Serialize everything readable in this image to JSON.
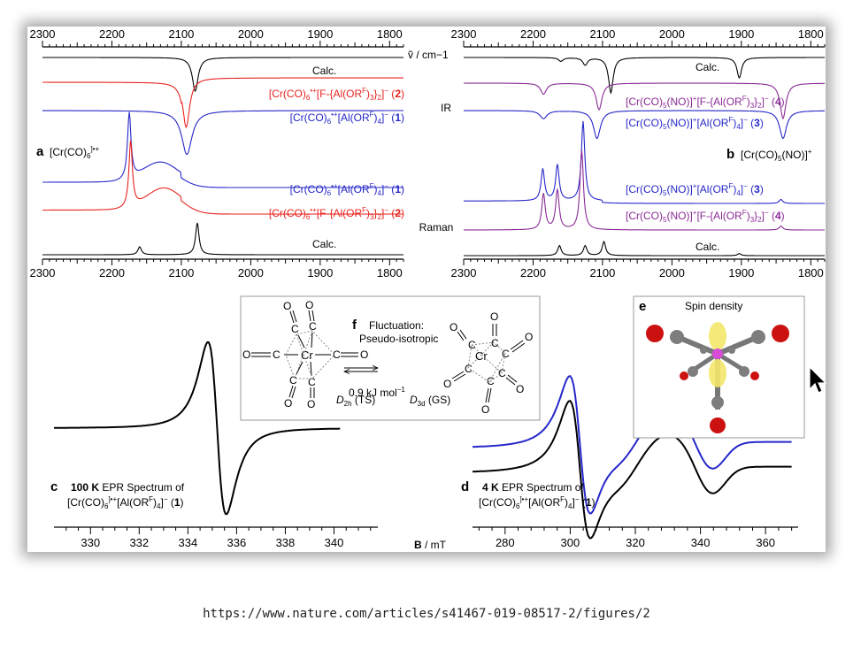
{
  "caption": {
    "url": "https://www.nature.com/articles/s41467-019-08517-2/figures/2"
  },
  "colors": {
    "black": "#000000",
    "red": "#e8231f",
    "blue": "#2527c9",
    "purple": "#8a2a96"
  },
  "panels": {
    "a": {
      "letter": "a",
      "species": "[Cr(CO)6]•+",
      "method_ir": "IR",
      "method_raman": "Raman",
      "traces": [
        {
          "id": "ir-calc",
          "label": "Calc.",
          "color": "#000000"
        },
        {
          "id": "ir-2",
          "label": "[Cr(CO)6]•+[F-{Al(ORF)3}2]− (2)",
          "color": "#e8231f"
        },
        {
          "id": "ir-1",
          "label": "[Cr(CO)6]•+[Al(ORF)4]− (1)",
          "color": "#2527c9"
        },
        {
          "id": "ra-1",
          "label": "[Cr(CO)6]•+[Al(ORF)4]− (1)",
          "color": "#2527c9"
        },
        {
          "id": "ra-2",
          "label": "[Cr(CO)6]•+[F-{Al(ORF)3}2]− (2)",
          "color": "#e8231f"
        },
        {
          "id": "ra-calc",
          "label": "Calc.",
          "color": "#000000"
        }
      ]
    },
    "b": {
      "letter": "b",
      "species": "[Cr(CO)5(NO)]+",
      "traces": [
        {
          "id": "ir-calc",
          "label": "Calc.",
          "color": "#000000"
        },
        {
          "id": "ir-4",
          "label": "[Cr(CO)5(NO)]+[F-{Al(ORF)3}2]− (4)",
          "color": "#8a2a96"
        },
        {
          "id": "ir-3",
          "label": "[Cr(CO)5(NO)]+[Al(ORF)4]− (3)",
          "color": "#2527c9"
        },
        {
          "id": "ra-3",
          "label": "[Cr(CO)5(NO)]+[Al(ORF)4]− (3)",
          "color": "#2527c9"
        },
        {
          "id": "ra-4",
          "label": "[Cr(CO)5(NO)]+[F-{Al(ORF)3}2]− (4)",
          "color": "#8a2a96"
        },
        {
          "id": "ra-calc",
          "label": "Calc.",
          "color": "#000000"
        }
      ]
    },
    "c": {
      "letter": "c",
      "temp": "100 K",
      "title": "EPR Spectrum of",
      "compound": "[Cr(CO)6]•+[Al(ORF)4]− (1)"
    },
    "d": {
      "letter": "d",
      "temp": "4 K",
      "title": "EPR Spectrum of",
      "compound": "[Cr(CO)6]•+[Al(ORF)4]− (1)"
    },
    "e": {
      "letter": "e",
      "title": "Spin density"
    },
    "f": {
      "letter": "f",
      "line1": "Fluctuation:",
      "line2": "Pseudo-isotropic",
      "energy": "0.9 kJ mol−1",
      "left_label": "D2h (TS)",
      "right_label": "D3d (GS)"
    }
  },
  "chart_data": [
    {
      "panel": "a",
      "type": "line",
      "title": "",
      "xlabel": "ṽ / cm−1",
      "xlim": [
        2300,
        1780
      ],
      "x_reversed": true,
      "ticks": [
        2300,
        2200,
        2100,
        2000,
        1900,
        1800
      ],
      "series": [
        {
          "name": "Calc.",
          "technique": "IR",
          "color": "#000000",
          "peaks": [
            {
              "x": 2080,
              "depth": 1.0
            }
          ]
        },
        {
          "name": "[Cr(CO)6]•+[F-{Al(ORF)3}2]− (2)",
          "technique": "IR",
          "color": "#e8231f",
          "peaks": [
            {
              "x": 2093,
              "depth": 0.9
            }
          ]
        },
        {
          "name": "[Cr(CO)6]•+[Al(ORF)4]− (1)",
          "technique": "IR",
          "color": "#2527c9",
          "peaks": [
            {
              "x": 2092,
              "depth": 0.8
            }
          ]
        },
        {
          "name": "[Cr(CO)6]•+[Al(ORF)4]− (1)",
          "technique": "Raman",
          "color": "#2527c9",
          "peaks": [
            {
              "x": 2175,
              "height": 1.0
            },
            {
              "x": 2130,
              "height": 0.3
            }
          ]
        },
        {
          "name": "[Cr(CO)6]•+[F-{Al(ORF)3}2]− (2)",
          "technique": "Raman",
          "color": "#e8231f",
          "peaks": [
            {
              "x": 2173,
              "height": 1.0
            },
            {
              "x": 2125,
              "height": 0.35
            }
          ]
        },
        {
          "name": "Calc.",
          "technique": "Raman",
          "color": "#000000",
          "peaks": [
            {
              "x": 2160,
              "height": 0.2
            },
            {
              "x": 2077,
              "height": 0.8
            }
          ]
        }
      ]
    },
    {
      "panel": "b",
      "type": "line",
      "title": "",
      "xlabel": "ṽ / cm−1",
      "xlim": [
        2300,
        1780
      ],
      "x_reversed": true,
      "ticks": [
        2300,
        2200,
        2100,
        2000,
        1900,
        1800
      ],
      "series": [
        {
          "name": "Calc.",
          "technique": "IR",
          "color": "#000000",
          "peaks": [
            {
              "x": 2160,
              "depth": 0.1
            },
            {
              "x": 2125,
              "depth": 0.2
            },
            {
              "x": 2088,
              "depth": 0.95
            },
            {
              "x": 1903,
              "depth": 0.55
            }
          ]
        },
        {
          "name": "[Cr(CO)5(NO)]+[F-{Al(ORF)3}2]− (4)",
          "technique": "IR",
          "color": "#8a2a96",
          "peaks": [
            {
              "x": 2185,
              "depth": 0.25
            },
            {
              "x": 2105,
              "depth": 0.6
            },
            {
              "x": 1840,
              "depth": 0.8
            }
          ]
        },
        {
          "name": "[Cr(CO)5(NO)]+[Al(ORF)4]− (3)",
          "technique": "IR",
          "color": "#2527c9",
          "peaks": [
            {
              "x": 2185,
              "depth": 0.2
            },
            {
              "x": 2108,
              "depth": 0.7
            },
            {
              "x": 1840,
              "depth": 0.7
            }
          ]
        },
        {
          "name": "[Cr(CO)5(NO)]+[Al(ORF)4]− (3)",
          "technique": "Raman",
          "color": "#2527c9",
          "peaks": [
            {
              "x": 2186,
              "height": 0.4
            },
            {
              "x": 2165,
              "height": 0.45
            },
            {
              "x": 2128,
              "height": 1.0
            },
            {
              "x": 1843,
              "height": 0.05
            }
          ]
        },
        {
          "name": "[Cr(CO)5(NO)]+[F-{Al(ORF)3}2]− (4)",
          "technique": "Raman",
          "color": "#8a2a96",
          "peaks": [
            {
              "x": 2185,
              "height": 0.45
            },
            {
              "x": 2165,
              "height": 0.5
            },
            {
              "x": 2130,
              "height": 1.0
            },
            {
              "x": 1843,
              "height": 0.05
            }
          ]
        },
        {
          "name": "Calc.",
          "technique": "Raman",
          "color": "#000000",
          "peaks": [
            {
              "x": 2162,
              "height": 0.25
            },
            {
              "x": 2125,
              "height": 0.25
            },
            {
              "x": 2098,
              "height": 0.35
            },
            {
              "x": 1903,
              "height": 0.05
            }
          ]
        }
      ]
    },
    {
      "panel": "c",
      "type": "line",
      "title": "",
      "xlabel": "B / mT",
      "xlim": [
        328.5,
        341.8
      ],
      "ticks": [
        330,
        332,
        334,
        336,
        338,
        340
      ],
      "series": [
        {
          "name": "",
          "color": "#000000",
          "derivative_center": 335.2,
          "max_at": 334.6,
          "min_at": 335.9
        }
      ]
    },
    {
      "panel": "d",
      "type": "line",
      "title": "",
      "xlabel": "B / mT",
      "xlim": [
        270,
        370
      ],
      "ticks": [
        280,
        300,
        320,
        340,
        360
      ],
      "series": [
        {
          "name": "",
          "color": "#000000",
          "features_mT": [
            303,
            316,
            343
          ]
        },
        {
          "name": "",
          "color": "#2527c9",
          "features_mT": [
            303,
            316,
            343
          ]
        }
      ]
    }
  ]
}
